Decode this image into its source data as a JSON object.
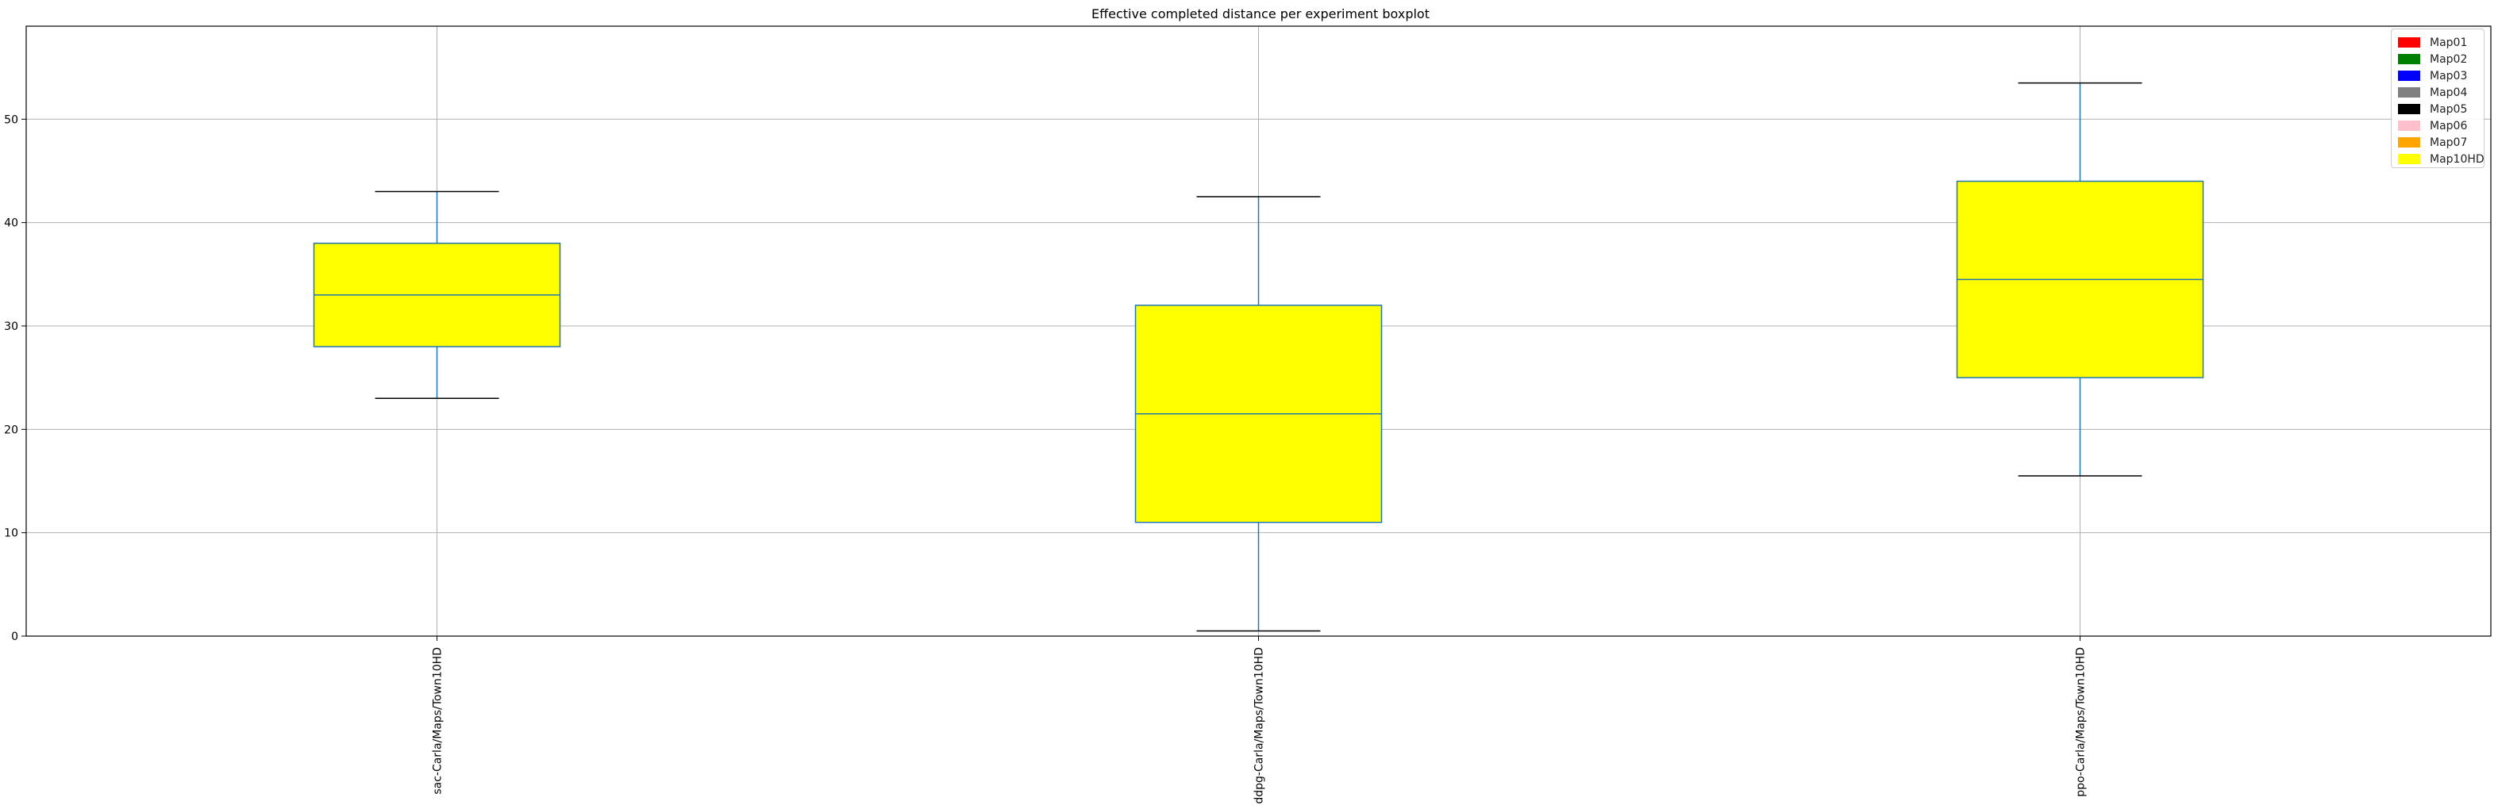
{
  "chart_data": {
    "type": "box",
    "title": "Effective completed distance per experiment boxplot",
    "xlabel": "",
    "ylabel": "",
    "ylim": [
      0,
      59
    ],
    "yticks": [
      0,
      10,
      20,
      30,
      40,
      50
    ],
    "grid": true,
    "legend_position": "top-right",
    "box_fill_color": "#ffff00",
    "box_edge_color": "#1f77b4",
    "whisker_color": "#1f77b4",
    "cap_color": "#000000",
    "categories": [
      "sac-Carla/Maps/Town10HD",
      "ddpg-Carla/Maps/Town10HD",
      "ppo-Carla/Maps/Town10HD"
    ],
    "boxes": [
      {
        "label": "sac-Carla/Maps/Town10HD",
        "whislo": 23,
        "q1": 28,
        "med": 33,
        "q3": 38,
        "whishi": 43
      },
      {
        "label": "ddpg-Carla/Maps/Town10HD",
        "whislo": 0.5,
        "q1": 11,
        "med": 21.5,
        "q3": 32,
        "whishi": 42.5
      },
      {
        "label": "ppo-Carla/Maps/Town10HD",
        "whislo": 15.5,
        "q1": 25,
        "med": 34.5,
        "q3": 44,
        "whishi": 53.5
      }
    ],
    "legend": [
      {
        "label": "Map01",
        "color": "#ff0000"
      },
      {
        "label": "Map02",
        "color": "#008000"
      },
      {
        "label": "Map03",
        "color": "#0000ff"
      },
      {
        "label": "Map04",
        "color": "#808080"
      },
      {
        "label": "Map05",
        "color": "#000000"
      },
      {
        "label": "Map06",
        "color": "#ffc0cb"
      },
      {
        "label": "Map07",
        "color": "#ffa500"
      },
      {
        "label": "Map10HD",
        "color": "#ffff00"
      }
    ]
  }
}
